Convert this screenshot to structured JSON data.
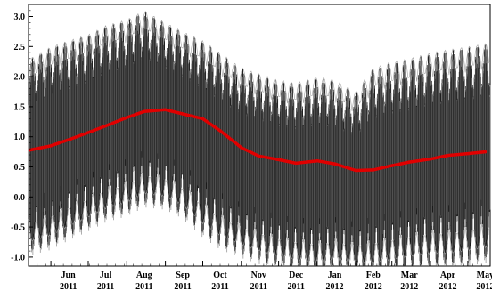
{
  "chart_data": {
    "type": "line",
    "title": "",
    "xlabel": "",
    "ylabel": "",
    "ylim": [
      -1.15,
      3.2
    ],
    "grid": false,
    "legend": "none",
    "y_ticks": [
      "3.0",
      "2.5",
      "2.0",
      "1.5",
      "1.0",
      "0.5",
      "0.0",
      "-0.5",
      "-1.0"
    ],
    "y_tick_values": [
      3.0,
      2.5,
      2.0,
      1.5,
      1.0,
      0.5,
      0.0,
      -0.5,
      -1.0
    ],
    "x_tick_labels": [
      {
        "month": "Jun",
        "year": "2011"
      },
      {
        "month": "Jul",
        "year": "2011"
      },
      {
        "month": "Aug",
        "year": "2011"
      },
      {
        "month": "Sep",
        "year": "2011"
      },
      {
        "month": "Oct",
        "year": "2011"
      },
      {
        "month": "Nov",
        "year": "2011"
      },
      {
        "month": "Dec",
        "year": "2011"
      },
      {
        "month": "Jan",
        "year": "2012"
      },
      {
        "month": "Feb",
        "year": "2012"
      },
      {
        "month": "Mar",
        "year": "2012"
      },
      {
        "month": "Apr",
        "year": "2012"
      },
      {
        "month": "May",
        "year": "2012"
      }
    ],
    "series": [
      {
        "role": "raw-oscillation-envelope",
        "color": "#000000",
        "x": [
          "2011-05-15",
          "2011-06-01",
          "2011-06-15",
          "2011-07-01",
          "2011-07-15",
          "2011-08-01",
          "2011-08-15",
          "2011-09-01",
          "2011-09-15",
          "2011-10-01",
          "2011-10-15",
          "2011-11-01",
          "2011-11-15",
          "2011-12-01",
          "2011-12-15",
          "2012-01-01",
          "2012-01-15",
          "2012-02-01",
          "2012-02-15",
          "2012-03-01",
          "2012-03-15",
          "2012-04-01",
          "2012-04-15",
          "2012-05-01",
          "2012-05-15"
        ],
        "y_max": [
          2.3,
          2.5,
          2.6,
          2.7,
          2.85,
          2.95,
          3.1,
          2.9,
          2.75,
          2.6,
          2.4,
          2.15,
          2.05,
          1.95,
          1.9,
          2.0,
          1.95,
          1.75,
          2.15,
          2.25,
          2.3,
          2.4,
          2.45,
          2.5,
          2.55
        ],
        "y_min": [
          -0.75,
          -0.65,
          -0.5,
          -0.35,
          -0.2,
          -0.1,
          0.05,
          0.0,
          -0.15,
          -0.45,
          -0.65,
          -0.8,
          -0.9,
          -1.0,
          -1.05,
          -1.1,
          -1.05,
          -1.1,
          -1.1,
          -1.05,
          -1.0,
          -0.95,
          -0.95,
          -0.9,
          -0.85
        ]
      },
      {
        "role": "smoothed-trend",
        "color": "#e00000",
        "x": [
          "2011-05-15",
          "2011-06-01",
          "2011-06-15",
          "2011-07-01",
          "2011-07-15",
          "2011-08-01",
          "2011-08-15",
          "2011-09-01",
          "2011-09-15",
          "2011-10-01",
          "2011-10-15",
          "2011-11-01",
          "2011-11-15",
          "2011-12-01",
          "2011-12-15",
          "2012-01-01",
          "2012-01-15",
          "2012-02-01",
          "2012-02-15",
          "2012-03-01",
          "2012-03-15",
          "2012-04-01",
          "2012-04-15",
          "2012-05-01",
          "2012-05-15"
        ],
        "y": [
          0.78,
          0.85,
          0.95,
          1.07,
          1.18,
          1.32,
          1.42,
          1.45,
          1.38,
          1.3,
          1.1,
          0.82,
          0.68,
          0.62,
          0.56,
          0.6,
          0.55,
          0.44,
          0.45,
          0.52,
          0.58,
          0.63,
          0.69,
          0.72,
          0.75
        ]
      }
    ]
  }
}
